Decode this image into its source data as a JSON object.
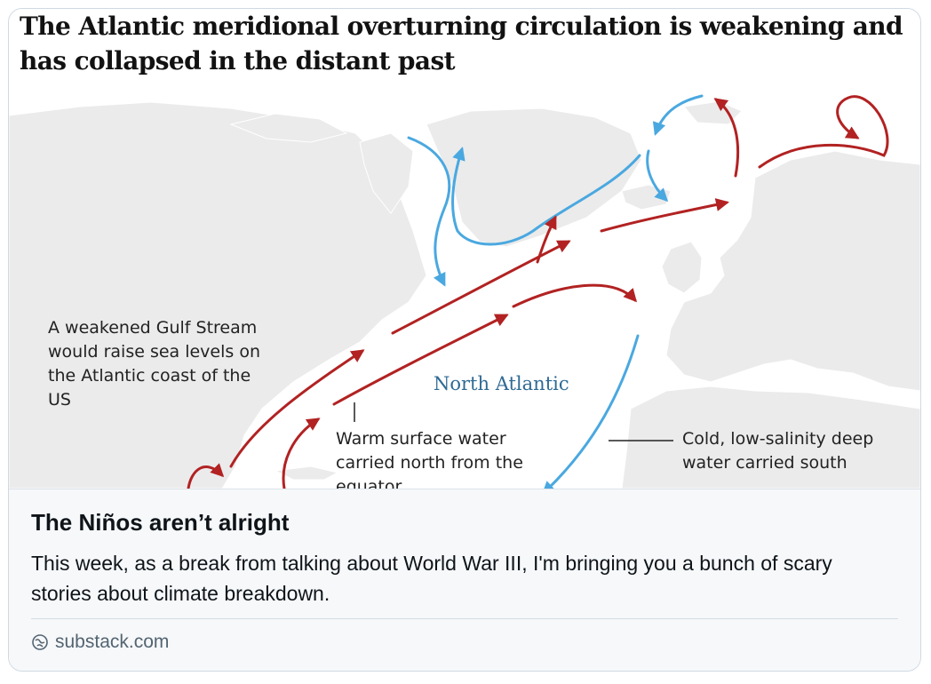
{
  "card": {
    "image": {
      "headline": "The Atlantic meridional overturning circulation is weakening and has collapsed in the distant past",
      "labels": {
        "gulf_stream": "A weakened Gulf Stream would raise sea levels on the Atlantic coast of the US",
        "ocean": "North Atlantic",
        "warm_water": "Warm surface water carried north from the equator",
        "cold_water": "Cold, low-salinity deep water carried south"
      },
      "colors": {
        "warm_arrow": "#b22222",
        "cold_arrow": "#4aa8e0",
        "land": "#ebebeb",
        "ocean_label": "#2e6a95"
      }
    },
    "title": "The Niños aren’t alright",
    "description": "This week, as a break from talking about World War III, I'm bringing you a bunch of scary stories about climate breakdown.",
    "source": {
      "icon": "globe-link-icon",
      "domain": "substack.com"
    }
  }
}
